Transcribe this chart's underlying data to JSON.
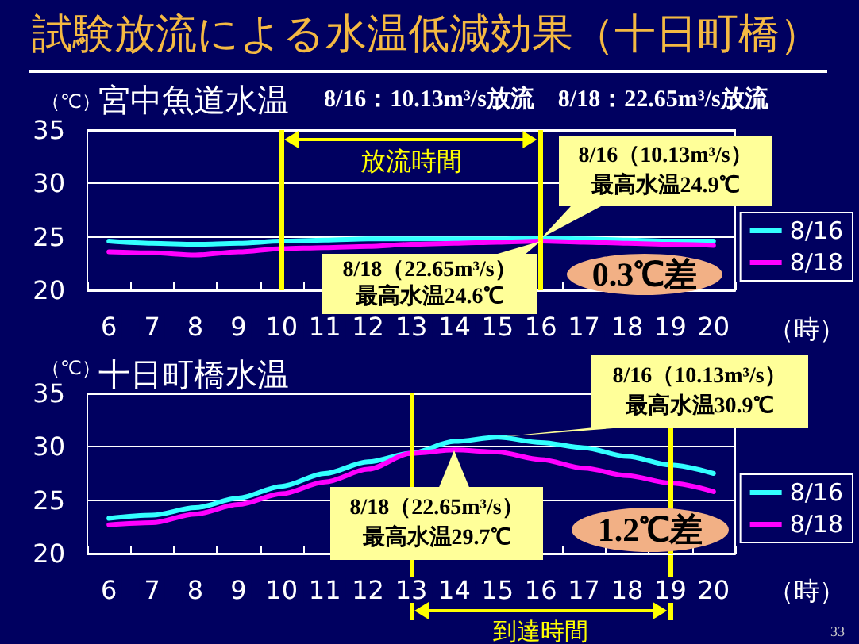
{
  "chart_data": [
    {
      "type": "line",
      "title": "試験放流による水温低減効果（十日町橋）",
      "subtitle": "宮中魚道水温",
      "xlabel": "（時）",
      "ylabel": "（℃）",
      "categories": [
        "6",
        "7",
        "8",
        "9",
        "10",
        "11",
        "12",
        "13",
        "14",
        "15",
        "16",
        "17",
        "18",
        "19",
        "20"
      ],
      "series": [
        {
          "name": "8/16",
          "color": "#33ffff",
          "values": [
            24.6,
            24.4,
            24.3,
            24.4,
            24.6,
            24.7,
            24.8,
            24.8,
            24.8,
            24.8,
            24.9,
            24.8,
            24.7,
            24.6,
            24.6
          ]
        },
        {
          "name": "8/18",
          "color": "#ff00ff",
          "values": [
            23.6,
            23.5,
            23.3,
            23.6,
            23.9,
            24.0,
            24.1,
            24.3,
            24.4,
            24.5,
            24.6,
            24.5,
            24.4,
            24.3,
            24.2
          ]
        }
      ],
      "ylim": [
        20,
        35
      ],
      "yticks": [
        20,
        25,
        30,
        35
      ],
      "grid": "y",
      "legend": "right",
      "marker": "none",
      "line_style": "solid",
      "ref_lines": [
        {
          "axis": "x",
          "value": "10",
          "color": "#ffff00"
        },
        {
          "axis": "x",
          "value": "16",
          "color": "#ffff00"
        }
      ],
      "annotations": [
        "8/16：10.13m³/s放流　8/18：22.65m³/s放流",
        "放流時間",
        {
          "text": "8/16（10.13m³/s）最高水温24.9℃",
          "x": "16",
          "y": 24.9
        },
        {
          "text": "8/18（22.65m³/s）最高水温24.6℃",
          "x": "16",
          "y": 24.6
        },
        "0.3℃差"
      ]
    },
    {
      "type": "line",
      "title": "十日町橋水温",
      "xlabel": "（時）",
      "ylabel": "（℃）",
      "categories": [
        "6",
        "7",
        "8",
        "9",
        "10",
        "11",
        "12",
        "13",
        "14",
        "15",
        "16",
        "17",
        "18",
        "19",
        "20"
      ],
      "series": [
        {
          "name": "8/16",
          "color": "#33ffff",
          "values": [
            23.3,
            23.6,
            24.3,
            25.2,
            26.3,
            27.5,
            28.6,
            29.4,
            30.5,
            30.9,
            30.4,
            29.9,
            29.1,
            28.3,
            27.5
          ]
        },
        {
          "name": "8/18",
          "color": "#ff00ff",
          "values": [
            22.7,
            22.9,
            23.7,
            24.6,
            25.6,
            26.7,
            27.9,
            29.4,
            29.7,
            29.5,
            28.8,
            28.0,
            27.3,
            26.6,
            25.8
          ]
        }
      ],
      "ylim": [
        20,
        35
      ],
      "yticks": [
        20,
        25,
        30,
        35
      ],
      "grid": "y",
      "legend": "right",
      "marker": "none",
      "line_style": "solid",
      "ref_lines": [
        {
          "axis": "x",
          "value": "13",
          "color": "#ffff00"
        },
        {
          "axis": "x",
          "value": "19",
          "color": "#ffff00"
        }
      ],
      "annotations": [
        "到達時間",
        {
          "text": "8/16（10.13m³/s）最高水温30.9℃",
          "x": "15",
          "y": 30.9
        },
        {
          "text": "8/18（22.65m³/s）最高水温29.7℃",
          "x": "14",
          "y": 29.7
        },
        "1.2℃差",
        "33"
      ]
    }
  ]
}
